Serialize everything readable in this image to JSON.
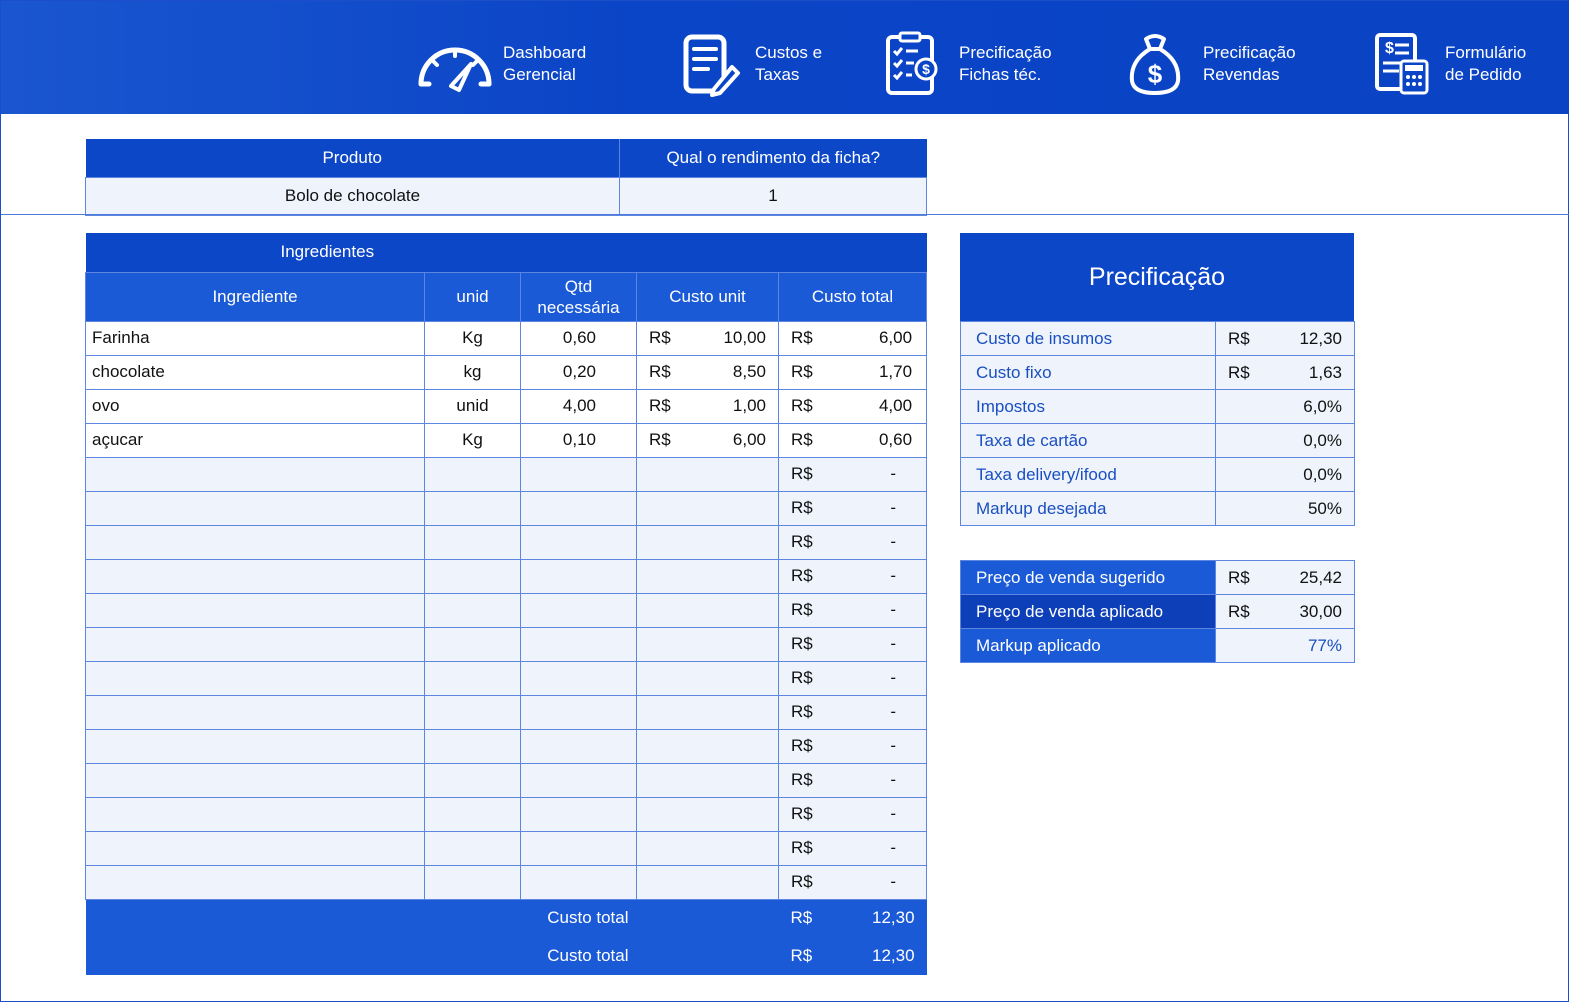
{
  "nav": [
    {
      "label": "Dashboard\nGerencial",
      "icon": "gauge-icon"
    },
    {
      "label": "Custos e\nTaxas",
      "icon": "document-edit-icon"
    },
    {
      "label": "Precificação\nFichas téc.",
      "icon": "checklist-money-icon"
    },
    {
      "label": "Precificação\nRevendas",
      "icon": "money-bag-icon"
    },
    {
      "label": "Formulário\nde Pedido",
      "icon": "invoice-calculator-icon"
    }
  ],
  "produto": {
    "header_produto": "Produto",
    "header_rendimento": "Qual o rendimento da ficha?",
    "produto_value": "Bolo de chocolate",
    "rendimento_value": "1"
  },
  "ingredientes": {
    "title": "Ingredientes",
    "columns": [
      "Ingrediente",
      "unid",
      "Qtd\nnecessária",
      "Custo unit",
      "Custo total"
    ],
    "currency": "R$",
    "rows": [
      {
        "nome": "Farinha",
        "unid": "Kg",
        "qtd": "0,60",
        "unit": "10,00",
        "total": "6,00"
      },
      {
        "nome": "chocolate",
        "unid": "kg",
        "qtd": "0,20",
        "unit": "8,50",
        "total": "1,70"
      },
      {
        "nome": "ovo",
        "unid": "unid",
        "qtd": "4,00",
        "unit": "1,00",
        "total": "4,00"
      },
      {
        "nome": "açucar",
        "unid": "Kg",
        "qtd": "0,10",
        "unit": "6,00",
        "total": "0,60"
      }
    ],
    "empty_rows": 13,
    "empty_value": "-",
    "footer": [
      {
        "label": "Custo total",
        "currency": "R$",
        "value": "12,30"
      },
      {
        "label": "Custo total",
        "currency": "R$",
        "value": "12,30"
      }
    ]
  },
  "precificacao": {
    "title": "Precificação",
    "items": [
      {
        "label": "Custo de insumos",
        "currency": "R$",
        "value": "12,30"
      },
      {
        "label": "Custo fixo",
        "currency": "R$",
        "value": "1,63"
      },
      {
        "label": "Impostos",
        "currency": "",
        "value": "6,0%"
      },
      {
        "label": "Taxa de cartão",
        "currency": "",
        "value": "0,0%"
      },
      {
        "label": "Taxa delivery/ifood",
        "currency": "",
        "value": "0,0%"
      },
      {
        "label": "Markup desejada",
        "currency": "",
        "value": "50%"
      }
    ],
    "results": {
      "sugerido_label": "Preço de venda sugerido",
      "sugerido_currency": "R$",
      "sugerido_value": "25,42",
      "aplicado_label": "Preço de venda aplicado",
      "aplicado_currency": "R$",
      "aplicado_value": "30,00",
      "markup_label": "Markup aplicado",
      "markup_value": "77%"
    }
  }
}
